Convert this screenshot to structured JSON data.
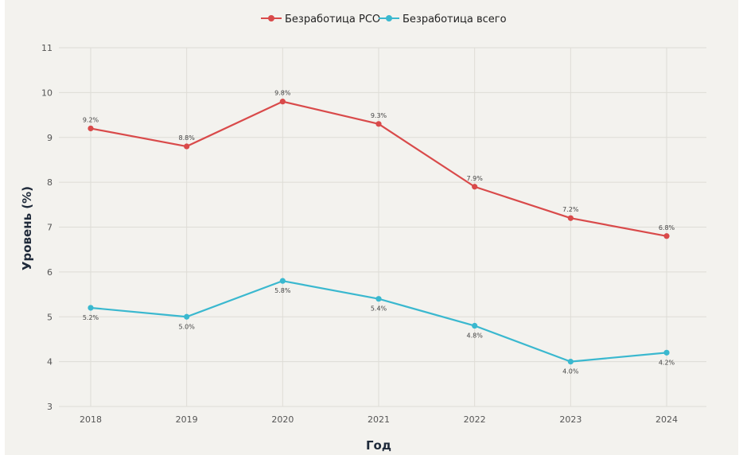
{
  "chart_data": {
    "type": "line",
    "title": "",
    "xlabel": "Год",
    "ylabel": "Уровень (%)",
    "ylim": [
      3,
      11
    ],
    "yticks": [
      3,
      4,
      5,
      6,
      7,
      8,
      9,
      10,
      11
    ],
    "grid": true,
    "legend_position": "top-center",
    "categories": [
      "2018",
      "2019",
      "2020",
      "2021",
      "2022",
      "2023",
      "2024"
    ],
    "series": [
      {
        "name": "Безработица РСО",
        "color": "#d94a4a",
        "label_position": "above",
        "values": [
          9.2,
          8.8,
          9.8,
          9.3,
          7.9,
          7.2,
          6.8
        ],
        "labels": [
          "9.2%",
          "8.8%",
          "9.8%",
          "9.3%",
          "7.9%",
          "7.2%",
          "6.8%"
        ]
      },
      {
        "name": "Безработица всего",
        "color": "#3ab8cf",
        "label_position": "below",
        "values": [
          5.2,
          5.0,
          5.8,
          5.4,
          4.8,
          4.0,
          4.2
        ],
        "labels": [
          "5.2%",
          "5.0%",
          "5.8%",
          "5.4%",
          "4.8%",
          "4.0%",
          "4.2%"
        ]
      }
    ]
  }
}
